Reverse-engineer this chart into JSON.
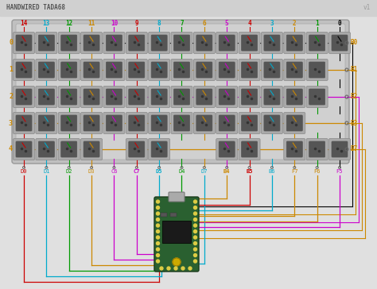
{
  "title": "HANDWIRED TADA68",
  "version": "v1",
  "bg_color": "#e0e0e0",
  "header_color": "#d0d0d0",
  "keyboard_bg": "#bbbbbb",
  "col_labels": [
    "14",
    "13",
    "12",
    "11",
    "10",
    "9",
    "8",
    "7",
    "6",
    "5",
    "4",
    "3",
    "2",
    "1",
    "0"
  ],
  "col_colors": [
    "#cc0000",
    "#00aacc",
    "#009900",
    "#cc8800",
    "#cc00cc",
    "#cc0000",
    "#00aacc",
    "#009900",
    "#cc8800",
    "#cc00cc",
    "#cc0000",
    "#00aacc",
    "#cc8800",
    "#009900",
    "#000000"
  ],
  "row_labels": [
    "0",
    "1",
    "2",
    "3",
    "4"
  ],
  "row_label_left_colors": [
    "#cc8800",
    "#cc8800",
    "#cc8800",
    "#cc8800",
    "#cc8800"
  ],
  "row_label_right": [
    "B0",
    "B1",
    "B2",
    "B3",
    "B7"
  ],
  "row_label_right_colors": [
    "#cc8800",
    "#cc8800",
    "#cc8800",
    "#cc8800",
    "#cc8800"
  ],
  "row_wire_colors": [
    "#000000",
    "#cc8800",
    "#cc00cc",
    "#cc8800",
    "#cc8800"
  ],
  "col_pin_labels": [
    "D0",
    "D1",
    "D2",
    "D3",
    "C6",
    "C7",
    "D5",
    "D4",
    "D7",
    "B4",
    "B5",
    "B6",
    "F7",
    "F6",
    "F5"
  ],
  "col_pin_colors": [
    "#cc0000",
    "#00aacc",
    "#009900",
    "#cc8800",
    "#cc00cc",
    "#cc00cc",
    "#00aacc",
    "#009900",
    "#00aacc",
    "#cc8800",
    "#cc0000",
    "#00aacc",
    "#cc8800",
    "#cc8800",
    "#cc00cc"
  ],
  "col_pin_bold": [
    "C7",
    "D5",
    "B4",
    "B5"
  ],
  "mcu_color": "#2a6030",
  "mcu_border": "#1a3a1a",
  "pad_color": "#ddcc44",
  "chip_color": "#111111",
  "usb_color": "#888888"
}
